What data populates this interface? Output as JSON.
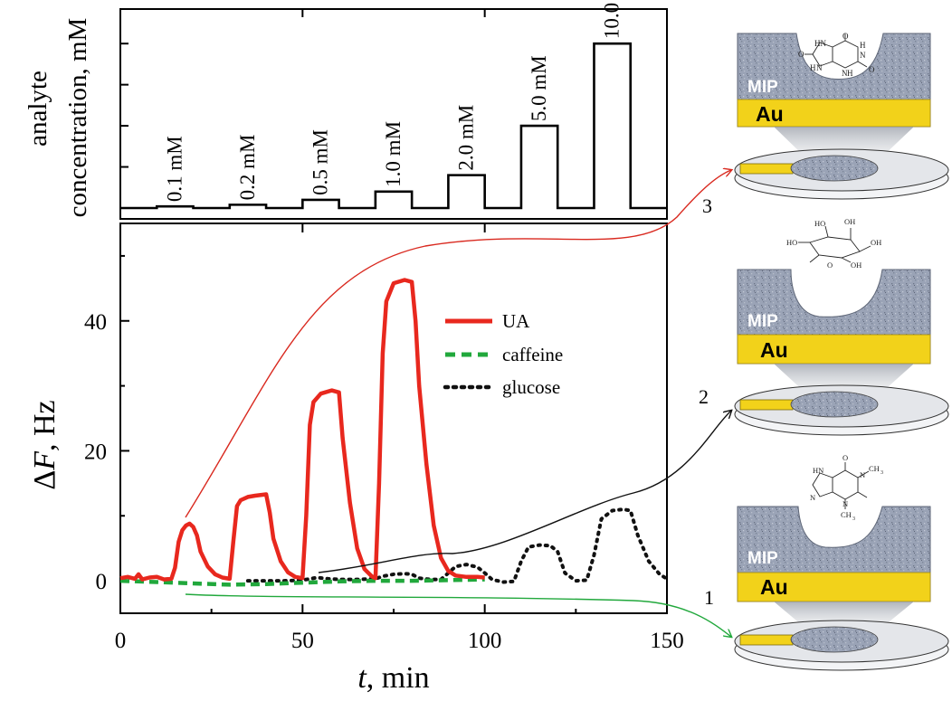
{
  "chart_data": [
    {
      "type": "line",
      "panel": "top",
      "ylabel_line1": "analyte",
      "ylabel_line2": "concentration, mM",
      "xlim": [
        0,
        150
      ],
      "ylim": [
        0,
        11
      ],
      "x_ticks": [
        0,
        50,
        100,
        150
      ],
      "y_tick_values": [
        0,
        2.5,
        5,
        7.5,
        10
      ],
      "y_ticks_labeled": false,
      "pulses": [
        {
          "label": "0.1 mM",
          "start": 10,
          "end": 20,
          "value": 0.1
        },
        {
          "label": "0.2 mM",
          "start": 30,
          "end": 40,
          "value": 0.2
        },
        {
          "label": "0.5 mM",
          "start": 50,
          "end": 60,
          "value": 0.5
        },
        {
          "label": "1.0 mM",
          "start": 70,
          "end": 80,
          "value": 1.0
        },
        {
          "label": "2.0 mM",
          "start": 90,
          "end": 100,
          "value": 2.0
        },
        {
          "label": "5.0 mM",
          "start": 110,
          "end": 120,
          "value": 5.0
        },
        {
          "label": "10.0 mM",
          "start": 130,
          "end": 140,
          "value": 10.0
        }
      ],
      "color": "#000000"
    },
    {
      "type": "line",
      "panel": "bottom",
      "xlabel_italic": "t",
      "xlabel_rest": ", min",
      "ylabel_symbol": "Δ",
      "ylabel_italic": "F",
      "ylabel_rest": ", Hz",
      "xlim": [
        0,
        150
      ],
      "ylim": [
        -5,
        55
      ],
      "x_ticks": [
        0,
        50,
        100,
        150
      ],
      "y_ticks": [
        0,
        20,
        40
      ],
      "x_minor_ticks": [
        25,
        75,
        125
      ],
      "y_minor_ticks": [
        10,
        30,
        50
      ],
      "legend": "upper-center",
      "series": [
        {
          "name": "UA",
          "color": "#e8281e",
          "style": "solid",
          "x": [
            0,
            2,
            4,
            5,
            6,
            8,
            10,
            12,
            14,
            15,
            16,
            17,
            18,
            19,
            20,
            21,
            22,
            24,
            26,
            28,
            30,
            31,
            32,
            33,
            35,
            37,
            40,
            41,
            42,
            44,
            46,
            48,
            50,
            51,
            52,
            53,
            55,
            58,
            60,
            61,
            63,
            65,
            67,
            69,
            70,
            71,
            72,
            73,
            75,
            78,
            80,
            81,
            82,
            84,
            86,
            88,
            90,
            92,
            95,
            98,
            100
          ],
          "y": [
            0.4,
            0.6,
            0.3,
            1.0,
            0.2,
            0.5,
            0.6,
            0.2,
            0.3,
            2.0,
            6.0,
            7.8,
            8.5,
            8.8,
            8.3,
            7.0,
            4.5,
            2.2,
            1.0,
            0.5,
            0.3,
            6.0,
            11.5,
            12.4,
            12.9,
            13.1,
            13.3,
            10.5,
            6.5,
            3.0,
            1.3,
            0.6,
            0.4,
            10.0,
            24.0,
            27.5,
            28.8,
            29.3,
            29.0,
            22.0,
            12.0,
            5.0,
            1.8,
            0.7,
            0.4,
            15.0,
            35.0,
            43.0,
            45.8,
            46.3,
            46.0,
            40.0,
            30.0,
            18.0,
            8.5,
            3.5,
            1.5,
            0.8,
            0.6,
            0.6,
            0.5
          ]
        },
        {
          "name": "caffeine",
          "color": "#21a83c",
          "style": "dashed",
          "x": [
            0,
            10,
            20,
            30,
            40,
            50,
            60,
            70,
            80,
            90,
            100
          ],
          "y": [
            0.0,
            -0.2,
            -0.4,
            -0.6,
            -0.5,
            -0.3,
            -0.1,
            0.0,
            0.0,
            0.1,
            0.2
          ]
        },
        {
          "name": "glucose",
          "color": "#111111",
          "style": "dotted",
          "x": [
            35,
            45,
            50,
            54,
            57,
            60,
            65,
            70,
            72,
            75,
            78,
            80,
            82,
            85,
            88,
            90,
            92,
            95,
            98,
            100,
            102,
            105,
            108,
            110,
            112,
            115,
            118,
            120,
            122,
            125,
            128,
            130,
            132,
            135,
            138,
            140,
            142,
            145,
            148,
            150
          ],
          "y": [
            0.0,
            0.0,
            0.1,
            0.5,
            0.3,
            0.2,
            0.2,
            0.3,
            0.7,
            1.0,
            1.1,
            1.0,
            0.4,
            0.2,
            0.2,
            1.2,
            2.2,
            2.5,
            2.1,
            1.2,
            0.2,
            -0.2,
            -0.1,
            3.0,
            5.2,
            5.5,
            5.4,
            4.5,
            1.2,
            0.0,
            0.1,
            4.0,
            9.5,
            10.8,
            11.0,
            10.8,
            7.0,
            3.0,
            1.0,
            0.3
          ]
        }
      ]
    }
  ],
  "schematics": [
    {
      "number": "3",
      "polymer_label": "MIP",
      "electrode_label": "Au",
      "analyte": "uric acid",
      "analyte_bound": true
    },
    {
      "number": "2",
      "polymer_label": "MIP",
      "electrode_label": "Au",
      "analyte": "glucose",
      "analyte_bound": false
    },
    {
      "number": "1",
      "polymer_label": "MIP",
      "electrode_label": "Au",
      "analyte": "caffeine",
      "analyte_bound": false
    }
  ],
  "molecules": {
    "uric_acid_atoms": [
      "HN",
      "O",
      "H",
      "N",
      "O",
      "N",
      "H",
      "N",
      "H",
      "O"
    ],
    "glucose_atoms": [
      "OH",
      "HO",
      "OH",
      "HO",
      "O",
      "OH"
    ],
    "caffeine_atoms": [
      "O",
      "HN",
      "N",
      "CH",
      "N",
      "N",
      "CH",
      "3",
      "3"
    ]
  },
  "colors": {
    "axes": "#000000",
    "mip": "#8d97ab",
    "gold": "#f2d21a",
    "disk": "#e4e6ea",
    "arrow_red": "#d9291f",
    "arrow_black": "#111111",
    "arrow_green": "#21a83c"
  }
}
